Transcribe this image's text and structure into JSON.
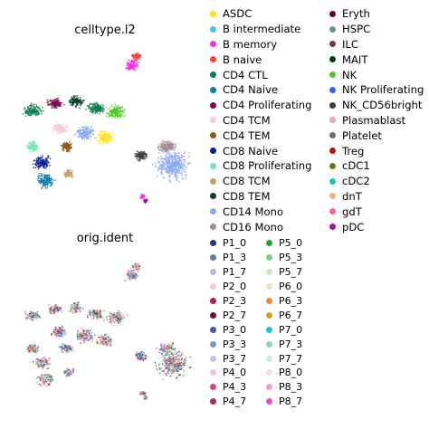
{
  "chart_data": [
    {
      "type": "scatter",
      "title": "celltype.l2",
      "legend_placement": "right",
      "legend": [
        {
          "label": "ASDC",
          "color": "#ffe119"
        },
        {
          "label": "B intermediate",
          "color": "#3cc3f0"
        },
        {
          "label": "B memory",
          "color": "#f032e6"
        },
        {
          "label": "B naive",
          "color": "#f0463c"
        },
        {
          "label": "CD4 CTL",
          "color": "#0a7d50"
        },
        {
          "label": "CD4 Naive",
          "color": "#0a7daa"
        },
        {
          "label": "CD4 Proliferating",
          "color": "#7d0a50"
        },
        {
          "label": "CD4 TCM",
          "color": "#f5c8d2"
        },
        {
          "label": "CD4 TEM",
          "color": "#8c5a14"
        },
        {
          "label": "CD8 Naive",
          "color": "#0a1e8c"
        },
        {
          "label": "CD8 Proliferating",
          "color": "#78e6b4"
        },
        {
          "label": "CD8 TCM",
          "color": "#c8a064"
        },
        {
          "label": "CD8 TEM",
          "color": "#0a3c32"
        },
        {
          "label": "CD14 Mono",
          "color": "#8caaf0"
        },
        {
          "label": "CD16 Mono",
          "color": "#a08c8c"
        },
        {
          "label": "Eryth",
          "color": "#5a0a0a"
        },
        {
          "label": "HSPC",
          "color": "#788c96"
        },
        {
          "label": "ILC",
          "color": "#6e3c50"
        },
        {
          "label": "MAIT",
          "color": "#0a3c0a"
        },
        {
          "label": "NK",
          "color": "#50c828"
        },
        {
          "label": "NK Proliferating",
          "color": "#465af0"
        },
        {
          "label": "NK_CD56bright",
          "color": "#3c3c3c"
        },
        {
          "label": "Plasmablast",
          "color": "#f0a0c8"
        },
        {
          "label": "Platelet",
          "color": "#6e6e6e"
        },
        {
          "label": "Treg",
          "color": "#b41414"
        },
        {
          "label": "cDC1",
          "color": "#647d14"
        },
        {
          "label": "cDC2",
          "color": "#14c8b4"
        },
        {
          "label": "dnT",
          "color": "#f5aa8c"
        },
        {
          "label": "gdT",
          "color": "#f0649b"
        },
        {
          "label": "pDC",
          "color": "#a014a0"
        }
      ]
    },
    {
      "type": "scatter",
      "title": "orig.ident",
      "legend_placement": "right",
      "legend": [
        {
          "label": "P1_0",
          "color": "#1e3c96"
        },
        {
          "label": "P1_3",
          "color": "#6478aa"
        },
        {
          "label": "P1_7",
          "color": "#b4bed2"
        },
        {
          "label": "P2_0",
          "color": "#ebd2d7"
        },
        {
          "label": "P2_3",
          "color": "#b41e5a"
        },
        {
          "label": "P2_7",
          "color": "#780a3c"
        },
        {
          "label": "P3_0",
          "color": "#3c5ab4"
        },
        {
          "label": "P3_3",
          "color": "#8296c8"
        },
        {
          "label": "P3_7",
          "color": "#bec8e6"
        },
        {
          "label": "P4_0",
          "color": "#f0c8dc"
        },
        {
          "label": "P4_3",
          "color": "#c85078"
        },
        {
          "label": "P4_7",
          "color": "#a03264"
        },
        {
          "label": "P5_0",
          "color": "#28a03c"
        },
        {
          "label": "P5_3",
          "color": "#82c88c"
        },
        {
          "label": "P5_7",
          "color": "#c8e6c8"
        },
        {
          "label": "P6_0",
          "color": "#f0dcc8"
        },
        {
          "label": "P6_3",
          "color": "#e68c3c"
        },
        {
          "label": "P6_7",
          "color": "#dca01e"
        },
        {
          "label": "P7_0",
          "color": "#14c8c8"
        },
        {
          "label": "P7_3",
          "color": "#8cd2c8"
        },
        {
          "label": "P7_7",
          "color": "#c8ebe6"
        },
        {
          "label": "P8_0",
          "color": "#f5dce6"
        },
        {
          "label": "P8_3",
          "color": "#e6a0d2"
        },
        {
          "label": "P8_7",
          "color": "#d25ac8"
        }
      ]
    }
  ]
}
